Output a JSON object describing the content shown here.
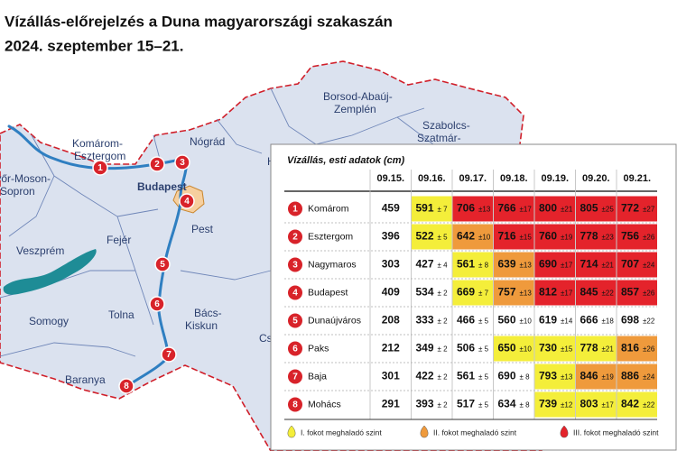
{
  "header": {
    "title_lines": [
      "Vízállás-előrejelzés a Duna magyarországi szakaszán",
      "2024. szeptember 15–21."
    ]
  },
  "map": {
    "labels": [
      {
        "lines": [
          "Komárom-",
          "Esztergom"
        ]
      },
      {
        "lines": [
          "Győr-Moson-",
          "Sopron"
        ]
      },
      {
        "lines": [
          "Nógrád"
        ]
      },
      {
        "lines": [
          "Budapest"
        ]
      },
      {
        "lines": [
          "Pest"
        ]
      },
      {
        "lines": [
          "Fejér"
        ]
      },
      {
        "lines": [
          "Veszprém"
        ]
      },
      {
        "lines": [
          "Somogy"
        ]
      },
      {
        "lines": [
          "Tolna"
        ]
      },
      {
        "lines": [
          "Bács-",
          "Kiskun"
        ]
      },
      {
        "lines": [
          "Baranya"
        ]
      },
      {
        "lines": [
          "Borsod-Abaúj-",
          "Zemplén"
        ]
      },
      {
        "lines": [
          "Szabolcs-",
          "Szatmár-"
        ]
      },
      {
        "lines": [
          "Heves"
        ]
      },
      {
        "lines": [
          "Csongrád"
        ]
      }
    ]
  },
  "table": {
    "caption": "Vízállás, esti adatok (cm)",
    "dates": [
      "09.15.",
      "09.16.",
      "09.17.",
      "09.18.",
      "09.19.",
      "09.20.",
      "09.21."
    ],
    "rows": [
      {
        "no": "1",
        "station": "Komárom",
        "cells": [
          {
            "value": 459,
            "error": null,
            "level": null
          },
          {
            "value": 591,
            "error": "± 7",
            "level": 0
          },
          {
            "value": 706,
            "error": "±13",
            "level": 2
          },
          {
            "value": 766,
            "error": "±17",
            "level": 2
          },
          {
            "value": 800,
            "error": "±21",
            "level": 2
          },
          {
            "value": 805,
            "error": "±25",
            "level": 2
          },
          {
            "value": 772,
            "error": "±27",
            "level": 2
          }
        ]
      },
      {
        "no": "2",
        "station": "Esztergom",
        "cells": [
          {
            "value": 396,
            "error": null,
            "level": null
          },
          {
            "value": 522,
            "error": "± 5",
            "level": 0
          },
          {
            "value": 642,
            "error": "±10",
            "level": 1
          },
          {
            "value": 716,
            "error": "±15",
            "level": 2
          },
          {
            "value": 760,
            "error": "±19",
            "level": 2
          },
          {
            "value": 778,
            "error": "±23",
            "level": 2
          },
          {
            "value": 756,
            "error": "±26",
            "level": 2
          }
        ]
      },
      {
        "no": "3",
        "station": "Nagymaros",
        "cells": [
          {
            "value": 303,
            "error": null,
            "level": null
          },
          {
            "value": 427,
            "error": "± 4",
            "level": null
          },
          {
            "value": 561,
            "error": "± 8",
            "level": 0
          },
          {
            "value": 639,
            "error": "±13",
            "level": 1
          },
          {
            "value": 690,
            "error": "±17",
            "level": 2
          },
          {
            "value": 714,
            "error": "±21",
            "level": 2
          },
          {
            "value": 707,
            "error": "±24",
            "level": 2
          }
        ]
      },
      {
        "no": "4",
        "station": "Budapest",
        "cells": [
          {
            "value": 409,
            "error": null,
            "level": null
          },
          {
            "value": 534,
            "error": "± 2",
            "level": null
          },
          {
            "value": 669,
            "error": "± 7",
            "level": 0
          },
          {
            "value": 757,
            "error": "±13",
            "level": 1
          },
          {
            "value": 812,
            "error": "±17",
            "level": 2
          },
          {
            "value": 845,
            "error": "±22",
            "level": 2
          },
          {
            "value": 857,
            "error": "±26",
            "level": 2
          }
        ]
      },
      {
        "no": "5",
        "station": "Dunaújváros",
        "cells": [
          {
            "value": 208,
            "error": null,
            "level": null
          },
          {
            "value": 333,
            "error": "± 2",
            "level": null
          },
          {
            "value": 466,
            "error": "± 5",
            "level": null
          },
          {
            "value": 560,
            "error": "±10",
            "level": null
          },
          {
            "value": 619,
            "error": "±14",
            "level": null
          },
          {
            "value": 666,
            "error": "±18",
            "level": null
          },
          {
            "value": 698,
            "error": "±22",
            "level": null
          }
        ]
      },
      {
        "no": "6",
        "station": "Paks",
        "cells": [
          {
            "value": 212,
            "error": null,
            "level": null
          },
          {
            "value": 349,
            "error": "± 2",
            "level": null
          },
          {
            "value": 506,
            "error": "± 5",
            "level": null
          },
          {
            "value": 650,
            "error": "±10",
            "level": 0
          },
          {
            "value": 730,
            "error": "±15",
            "level": 0
          },
          {
            "value": 778,
            "error": "±21",
            "level": 0
          },
          {
            "value": 816,
            "error": "±26",
            "level": 1
          }
        ]
      },
      {
        "no": "7",
        "station": "Baja",
        "cells": [
          {
            "value": 301,
            "error": null,
            "level": null
          },
          {
            "value": 422,
            "error": "± 2",
            "level": null
          },
          {
            "value": 561,
            "error": "± 5",
            "level": null
          },
          {
            "value": 690,
            "error": "± 8",
            "level": null
          },
          {
            "value": 793,
            "error": "±13",
            "level": 0
          },
          {
            "value": 846,
            "error": "±19",
            "level": 1
          },
          {
            "value": 886,
            "error": "±24",
            "level": 1
          }
        ]
      },
      {
        "no": "8",
        "station": "Mohács",
        "cells": [
          {
            "value": 291,
            "error": null,
            "level": null
          },
          {
            "value": 393,
            "error": "± 2",
            "level": null
          },
          {
            "value": 517,
            "error": "± 5",
            "level": null
          },
          {
            "value": 634,
            "error": "± 8",
            "level": null
          },
          {
            "value": 739,
            "error": "±12",
            "level": 0
          },
          {
            "value": 803,
            "error": "±17",
            "level": 0
          },
          {
            "value": 842,
            "error": "±22",
            "level": 0
          }
        ]
      }
    ]
  },
  "legend": [
    {
      "label": "I. fokot meghaladó szint",
      "color": "#f4ee3a"
    },
    {
      "label": "II. fokot meghaladó szint",
      "color": "#ef9a3c"
    },
    {
      "label": "III. fokot meghaladó szint",
      "color": "#e4232b"
    }
  ]
}
